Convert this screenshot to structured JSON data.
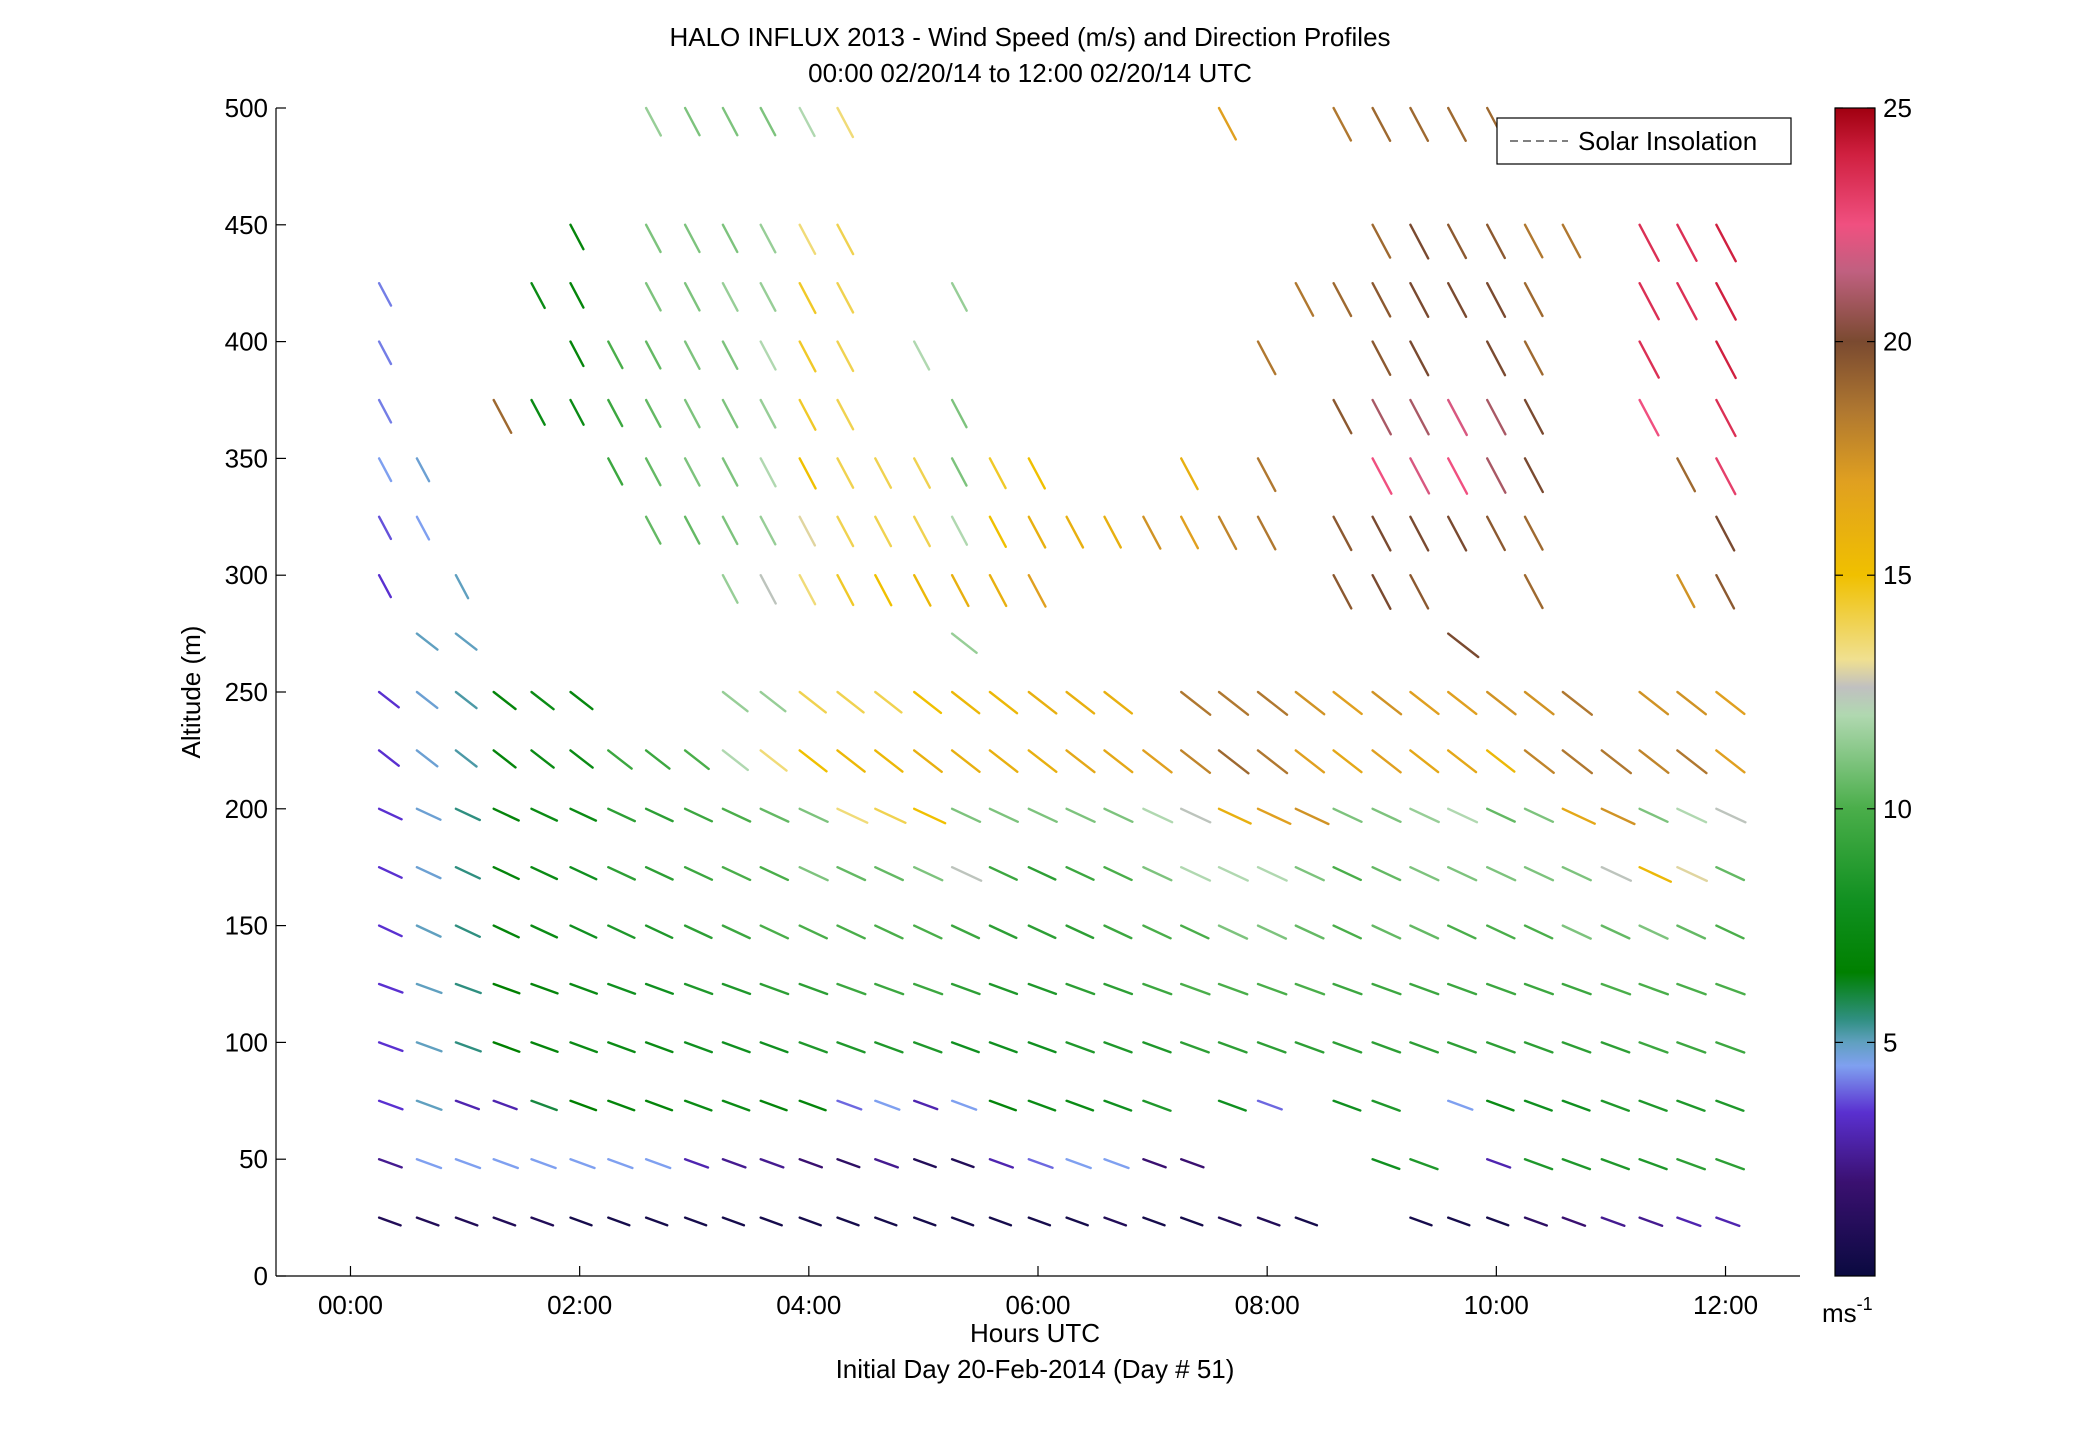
{
  "chart_data": {
    "type": "scatter",
    "subtype": "wind-barb-profile",
    "title": "HALO INFLUX 2013 - Wind Speed (m/s) and Direction Profiles",
    "subtitle": "00:00 02/20/14 to 12:00 02/20/14  UTC",
    "xlabel": "Hours UTC",
    "xlabel2": "Initial Day 20-Feb-2014 (Day # 51)",
    "ylabel": "Altitude (m)",
    "xlim": [
      -0.65,
      12.65
    ],
    "ylim": [
      0,
      500
    ],
    "x_ticks": [
      0,
      2,
      4,
      6,
      8,
      10,
      12
    ],
    "x_tick_labels": [
      "00:00",
      "02:00",
      "04:00",
      "06:00",
      "08:00",
      "10:00",
      "12:00"
    ],
    "y_ticks": [
      0,
      50,
      100,
      150,
      200,
      250,
      300,
      350,
      400,
      450,
      500
    ],
    "y_tick_labels": [
      "0",
      "50",
      "100",
      "150",
      "200",
      "250",
      "300",
      "350",
      "400",
      "450",
      "500"
    ],
    "legend": {
      "position": "top-right",
      "entries": [
        "Solar Insolation"
      ],
      "style": "dashed",
      "color": "#808080"
    },
    "colorbar": {
      "min": 0,
      "max": 25,
      "ticks": [
        5,
        10,
        15,
        20,
        25
      ],
      "tick_labels": [
        "5",
        "10",
        "15",
        "20",
        "25"
      ],
      "unit_label": "ms",
      "unit_exponent": "-1",
      "colormap": [
        [
          0,
          "#0a0a40"
        ],
        [
          2,
          "#3a1070"
        ],
        [
          3.5,
          "#5a30d0"
        ],
        [
          4.5,
          "#7fa0f0"
        ],
        [
          5,
          "#60a0c0"
        ],
        [
          5.5,
          "#2f8f80"
        ],
        [
          6.5,
          "#008000"
        ],
        [
          8,
          "#109020"
        ],
        [
          10,
          "#4aae4a"
        ],
        [
          12,
          "#b0d8b0"
        ],
        [
          12.6,
          "#c0c0c0"
        ],
        [
          13.2,
          "#f0e090"
        ],
        [
          15,
          "#f0c000"
        ],
        [
          17,
          "#e0a020"
        ],
        [
          18.5,
          "#b07830"
        ],
        [
          20,
          "#7a4a30"
        ],
        [
          21.5,
          "#c06080"
        ],
        [
          22.5,
          "#f05080"
        ],
        [
          24,
          "#d02040"
        ],
        [
          25,
          "#a00010"
        ]
      ]
    },
    "barbs": {
      "columns": [
        0.25,
        0.58,
        0.92,
        1.25,
        1.58,
        1.92,
        2.25,
        2.58,
        2.92,
        3.25,
        3.58,
        3.92,
        4.25,
        4.58,
        4.92,
        5.25,
        5.58,
        5.92,
        6.25,
        6.58,
        6.92,
        7.25,
        7.58,
        7.92,
        8.25,
        8.58,
        8.92,
        9.25,
        9.58,
        9.92,
        10.25,
        10.58,
        10.92,
        11.25,
        11.58,
        11.92
      ],
      "altitudes": [
        500,
        450,
        425,
        400,
        375,
        350,
        325,
        300,
        275,
        250,
        225,
        200,
        175,
        150,
        125,
        100,
        75,
        50,
        25
      ],
      "speed_ms": [
        [
          null,
          null,
          null,
          null,
          null,
          null,
          null,
          11.5,
          11,
          11,
          11,
          12,
          13.5,
          null,
          null,
          null,
          null,
          null,
          null,
          null,
          null,
          null,
          17,
          null,
          null,
          18.5,
          19,
          19,
          19,
          19,
          null,
          null,
          null,
          null,
          null,
          null
        ],
        [
          null,
          null,
          null,
          null,
          null,
          7,
          null,
          11,
          11,
          11,
          11.5,
          13.5,
          14,
          null,
          null,
          null,
          null,
          null,
          null,
          null,
          null,
          null,
          null,
          null,
          null,
          null,
          19,
          20,
          19.5,
          19.5,
          18.5,
          18.5,
          null,
          23.5,
          23.5,
          24
        ],
        [
          4.2,
          null,
          null,
          null,
          7.5,
          7,
          null,
          11,
          11,
          11.5,
          11.5,
          14.5,
          14,
          null,
          null,
          11.5,
          null,
          null,
          null,
          null,
          null,
          null,
          null,
          null,
          18.5,
          19,
          19.5,
          20,
          20,
          20,
          19,
          null,
          null,
          23.5,
          23.5,
          24
        ],
        [
          4.2,
          null,
          null,
          null,
          null,
          7,
          10,
          10.5,
          11,
          11,
          12,
          14.5,
          14,
          null,
          12,
          null,
          null,
          null,
          null,
          null,
          null,
          null,
          null,
          18.5,
          null,
          null,
          19.5,
          20,
          null,
          20,
          19,
          null,
          null,
          23.5,
          null,
          24
        ],
        [
          4.2,
          null,
          null,
          19,
          7.5,
          7.5,
          9.5,
          10.5,
          11,
          11,
          11.5,
          14.5,
          14,
          null,
          null,
          11,
          null,
          null,
          null,
          null,
          null,
          null,
          null,
          null,
          null,
          19.5,
          21,
          21,
          22,
          21,
          20,
          null,
          null,
          22.5,
          null,
          23.5
        ],
        [
          4.5,
          4.8,
          null,
          null,
          null,
          null,
          9.5,
          10.5,
          11,
          11,
          12,
          15,
          14,
          14,
          14,
          11,
          14.5,
          15,
          null,
          null,
          null,
          16,
          null,
          18.5,
          null,
          null,
          22.5,
          22,
          22.5,
          21,
          20,
          null,
          null,
          null,
          19,
          23
        ],
        [
          3.8,
          4.5,
          null,
          null,
          null,
          null,
          null,
          10.5,
          10.5,
          11,
          11.5,
          13,
          14,
          14,
          14,
          12,
          15,
          16,
          16,
          16,
          17.5,
          17,
          18,
          18.5,
          null,
          19.5,
          20,
          20,
          20,
          19.5,
          19,
          null,
          null,
          null,
          null,
          20
        ],
        [
          3.5,
          null,
          5,
          null,
          null,
          null,
          null,
          null,
          null,
          11.5,
          12.5,
          13.5,
          14.5,
          15,
          15.5,
          16,
          16,
          17,
          null,
          null,
          null,
          null,
          null,
          null,
          null,
          19.5,
          20,
          19.5,
          null,
          null,
          19,
          null,
          null,
          null,
          17.5,
          19.5
        ],
        [
          null,
          5,
          5,
          null,
          null,
          null,
          null,
          null,
          null,
          null,
          null,
          null,
          null,
          null,
          null,
          11.5,
          null,
          null,
          null,
          null,
          null,
          null,
          null,
          null,
          null,
          null,
          null,
          null,
          20,
          null,
          null,
          null,
          null,
          null,
          null,
          null
        ],
        [
          3.5,
          4.8,
          5.2,
          7,
          7.5,
          7.2,
          null,
          null,
          null,
          11.5,
          11.5,
          14,
          14,
          14,
          15,
          15.5,
          15.5,
          16,
          16,
          16,
          null,
          18.5,
          18.5,
          18.5,
          17.5,
          17,
          17.5,
          17,
          17,
          17.5,
          17.5,
          18.5,
          null,
          17.5,
          17.5,
          17
        ],
        [
          3.5,
          4.8,
          5.2,
          7,
          7.5,
          7.5,
          9.5,
          9.5,
          10,
          12,
          13.5,
          15,
          15.5,
          15.5,
          16,
          16,
          16,
          16,
          16.5,
          16.5,
          17,
          18,
          19,
          18.5,
          17,
          16.5,
          17,
          16.5,
          16.5,
          15.5,
          18,
          18.5,
          18.5,
          18,
          18.5,
          17
        ],
        [
          3.5,
          4.8,
          5.5,
          7,
          7.5,
          7.5,
          9,
          9,
          9.5,
          10,
          10.5,
          11,
          13.5,
          14,
          15,
          11,
          11,
          11,
          11,
          11,
          12,
          12.5,
          16,
          17,
          17.5,
          11,
          11,
          11.5,
          12,
          10.5,
          11,
          16.5,
          17.5,
          11,
          12,
          12.5
        ],
        [
          3.5,
          4.8,
          5.5,
          7,
          7.5,
          8,
          9,
          9,
          9.5,
          10,
          10,
          11,
          10.5,
          10.5,
          11,
          12.5,
          9.5,
          9,
          9.5,
          10,
          11,
          12,
          12,
          12,
          11,
          10,
          10.5,
          11,
          11,
          11,
          11,
          11,
          12.5,
          15.5,
          13,
          10.5
        ],
        [
          3.5,
          5,
          5.5,
          7,
          7.5,
          8,
          8.5,
          8.5,
          9,
          9.5,
          10,
          10,
          10,
          10,
          10,
          9.5,
          9,
          9,
          9,
          9.5,
          10,
          10,
          11,
          11,
          10.5,
          10,
          10.5,
          10.5,
          10,
          10,
          10,
          11,
          10.5,
          11,
          10.5,
          10
        ],
        [
          3.5,
          5,
          5.5,
          6.5,
          7,
          7.5,
          8,
          8,
          8.5,
          8.5,
          9,
          9,
          9.5,
          9.5,
          9.5,
          9,
          8.5,
          8.5,
          9,
          9,
          9.5,
          10,
          10,
          10,
          10,
          9.5,
          9.5,
          9.5,
          9.5,
          9.5,
          9.5,
          9.5,
          10,
          10,
          10,
          10
        ],
        [
          3.5,
          5,
          5.5,
          6.5,
          7,
          7.5,
          7.5,
          7.5,
          8,
          8,
          8,
          8.5,
          8.5,
          8.5,
          8.5,
          8,
          8,
          8,
          8.5,
          8.5,
          8.5,
          9,
          9,
          9,
          9,
          9,
          9,
          9,
          9,
          9,
          9,
          9,
          9,
          9.5,
          9.5,
          9.5
        ],
        [
          3.5,
          5,
          3,
          3,
          6,
          6.5,
          7,
          7,
          7.5,
          7.5,
          7,
          7,
          4,
          4.5,
          3,
          4.5,
          7,
          7.5,
          7.5,
          8,
          8.5,
          null,
          8,
          4,
          null,
          8,
          8.5,
          null,
          4.5,
          7.5,
          8,
          8,
          8.5,
          8.5,
          8.5,
          8.5
        ],
        [
          2.5,
          4.5,
          4.5,
          4.5,
          4.5,
          4.5,
          4.5,
          4.5,
          3,
          2.5,
          2.5,
          2,
          1.5,
          2.5,
          1,
          1,
          3,
          4,
          4.5,
          4.5,
          2,
          2,
          null,
          null,
          null,
          null,
          8,
          8.5,
          null,
          3,
          8.5,
          8.5,
          8.5,
          8.5,
          9,
          9
        ],
        [
          1,
          1,
          1,
          1,
          1,
          0.5,
          0.5,
          0.5,
          0.5,
          0.5,
          0.5,
          0.5,
          0.5,
          0.5,
          0.5,
          0.5,
          0.5,
          0.5,
          0.5,
          1,
          0.5,
          0.5,
          1,
          1,
          0.5,
          null,
          null,
          0.5,
          0.5,
          0.5,
          1.5,
          2,
          2.5,
          2.5,
          3,
          3
        ]
      ]
    }
  }
}
